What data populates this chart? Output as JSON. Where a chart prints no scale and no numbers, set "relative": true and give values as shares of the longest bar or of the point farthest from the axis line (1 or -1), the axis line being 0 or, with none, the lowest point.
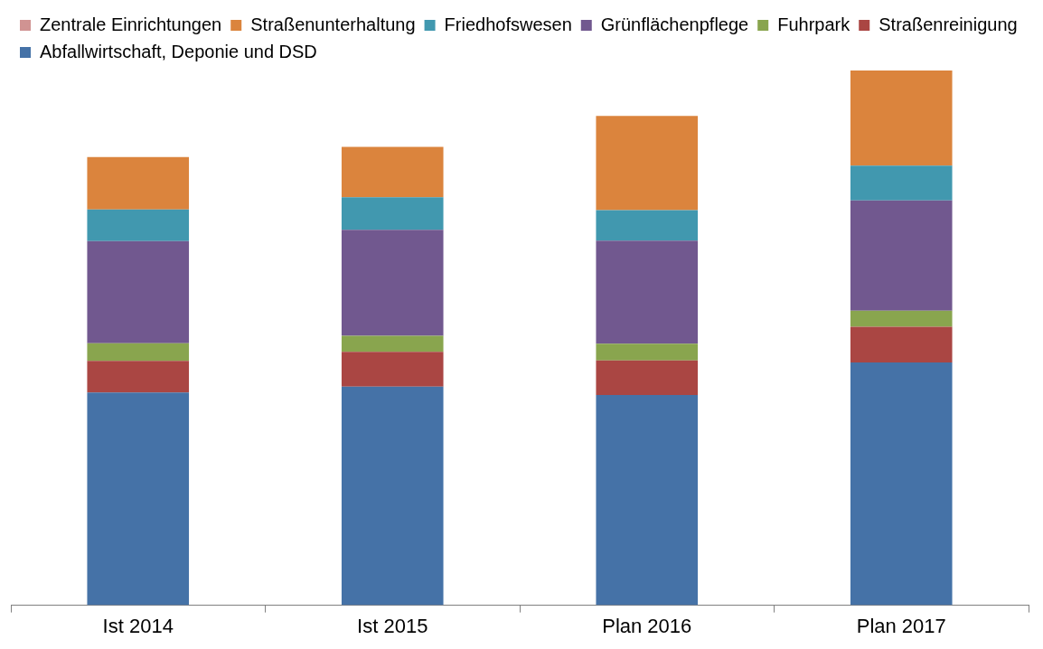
{
  "chart_data": {
    "type": "bar",
    "stacked": true,
    "relative": true,
    "legend": "top",
    "grid": false,
    "categories": [
      "Ist 2014",
      "Ist 2015",
      "Plan 2016",
      "Plan 2017"
    ],
    "series": [
      {
        "name": "Abfallwirtschaft, Deponie und DSD",
        "color": "#4572a7",
        "values": [
          0.398,
          0.409,
          0.393,
          0.454
        ]
      },
      {
        "name": "Straßenreinigung",
        "color": "#aa4643",
        "values": [
          0.059,
          0.065,
          0.065,
          0.067
        ]
      },
      {
        "name": "Fuhrpark",
        "color": "#89a54e",
        "values": [
          0.033,
          0.03,
          0.031,
          0.03
        ]
      },
      {
        "name": "Grünflächenpflege",
        "color": "#71588f",
        "values": [
          0.191,
          0.198,
          0.193,
          0.206
        ]
      },
      {
        "name": "Friedhofswesen",
        "color": "#4198af",
        "values": [
          0.059,
          0.061,
          0.057,
          0.065
        ]
      },
      {
        "name": "Straßenunterhaltung",
        "color": "#db843d",
        "values": [
          0.098,
          0.094,
          0.176,
          0.178
        ]
      },
      {
        "name": "Zentrale Einrichtungen",
        "color": "#d09392",
        "values": [
          0,
          0,
          0,
          0
        ]
      }
    ]
  }
}
